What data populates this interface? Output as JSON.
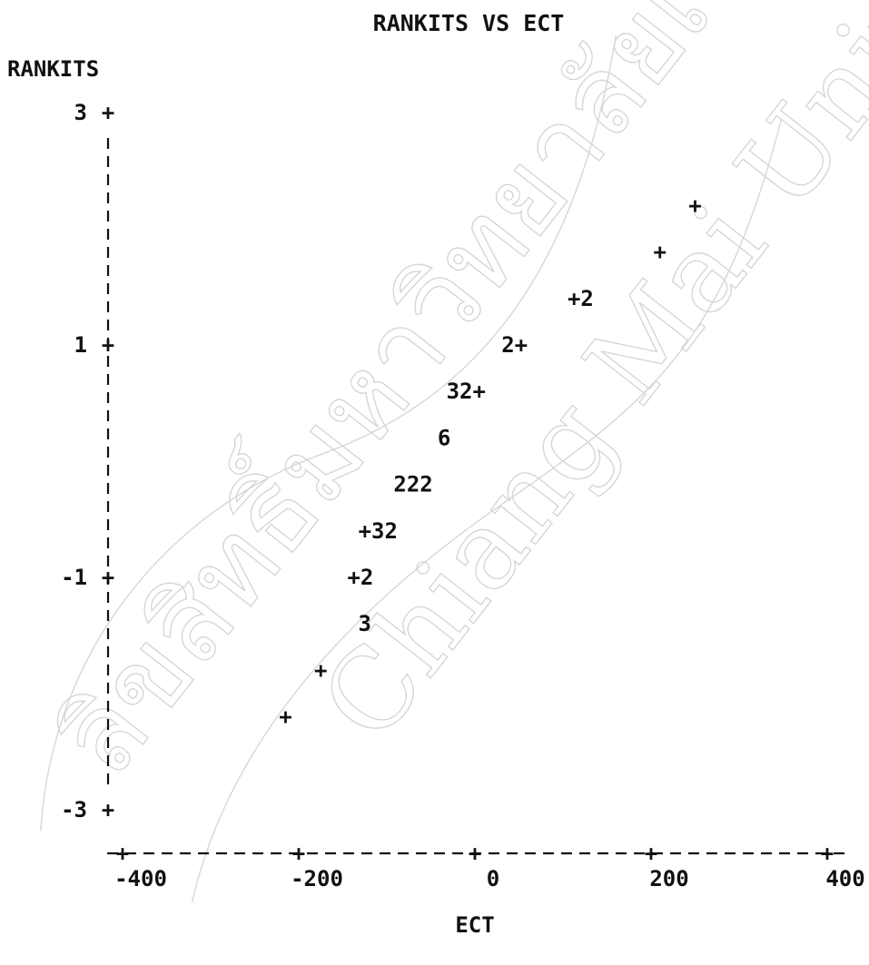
{
  "watermark": {
    "text_lines": [
      "ลิขสิทธิ์มหาวิทยาลัยเชียงใหม่",
      "Chiang Mai University"
    ],
    "color": "#d4d4d4"
  },
  "chart_data": {
    "type": "scatter",
    "title": "RANKITS VS ECT",
    "xlabel": "ECT",
    "ylabel": "RANKITS",
    "xlim": [
      -420,
      420
    ],
    "ylim": [
      -3.2,
      3.2
    ],
    "x_ticks": [
      {
        "value": -400,
        "label": "-400"
      },
      {
        "value": -200,
        "label": "-200"
      },
      {
        "value": 0,
        "label": "0"
      },
      {
        "value": 200,
        "label": "200"
      },
      {
        "value": 400,
        "label": "400"
      }
    ],
    "y_ticks": [
      {
        "value": 3,
        "label": "3"
      },
      {
        "value": 1,
        "label": "1"
      },
      {
        "value": -1,
        "label": "-1"
      },
      {
        "value": -3,
        "label": "-3"
      }
    ],
    "grid": false,
    "legend": "none",
    "point_glyphs": [
      {
        "x": 250,
        "y": 2.2,
        "label": "+"
      },
      {
        "x": 210,
        "y": 1.8,
        "label": "+"
      },
      {
        "x": 120,
        "y": 1.4,
        "label": "+2"
      },
      {
        "x": 45,
        "y": 1.0,
        "label": "2+"
      },
      {
        "x": -10,
        "y": 0.6,
        "label": "32+"
      },
      {
        "x": -35,
        "y": 0.2,
        "label": "6"
      },
      {
        "x": -70,
        "y": -0.2,
        "label": "222"
      },
      {
        "x": -110,
        "y": -0.6,
        "label": "+32"
      },
      {
        "x": -130,
        "y": -1.0,
        "label": "+2"
      },
      {
        "x": -125,
        "y": -1.4,
        "label": "3"
      },
      {
        "x": -175,
        "y": -1.8,
        "label": "+"
      },
      {
        "x": -215,
        "y": -2.2,
        "label": "+"
      }
    ]
  }
}
